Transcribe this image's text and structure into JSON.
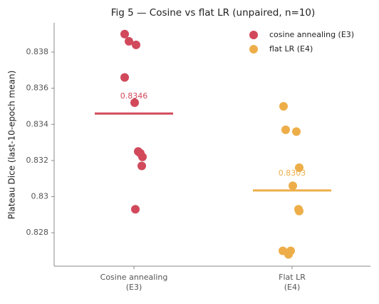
{
  "chart_data": {
    "type": "strip",
    "title": "Fig 5 — Cosine vs flat LR (unpaired, n=10)",
    "y_label": "Plateau Dice (last-10-epoch mean)",
    "categories": [
      "Cosine annealing\n(E3)",
      "Flat LR\n(E4)"
    ],
    "series": [
      {
        "name": "cosine annealing (E3)",
        "color": "#d1495b",
        "values": [
          0.839,
          0.8386,
          0.8384,
          0.8366,
          0.8352,
          0.8325,
          0.8324,
          0.8322,
          0.8317,
          0.8293
        ],
        "mean": 0.8346
      },
      {
        "name": "flat LR (E4)",
        "color": "#edae49",
        "values": [
          0.835,
          0.8337,
          0.8336,
          0.8316,
          0.8306,
          0.8293,
          0.8292,
          0.827,
          0.827,
          0.8268
        ],
        "mean": {
          "value": 0.83034,
          "label": "0.8303"
        }
      }
    ],
    "ylim": [
      0.82615,
      0.83962
    ],
    "yticks": [
      0.828,
      0.83,
      0.832,
      0.834,
      0.836,
      0.838
    ],
    "legend": "upper right"
  }
}
